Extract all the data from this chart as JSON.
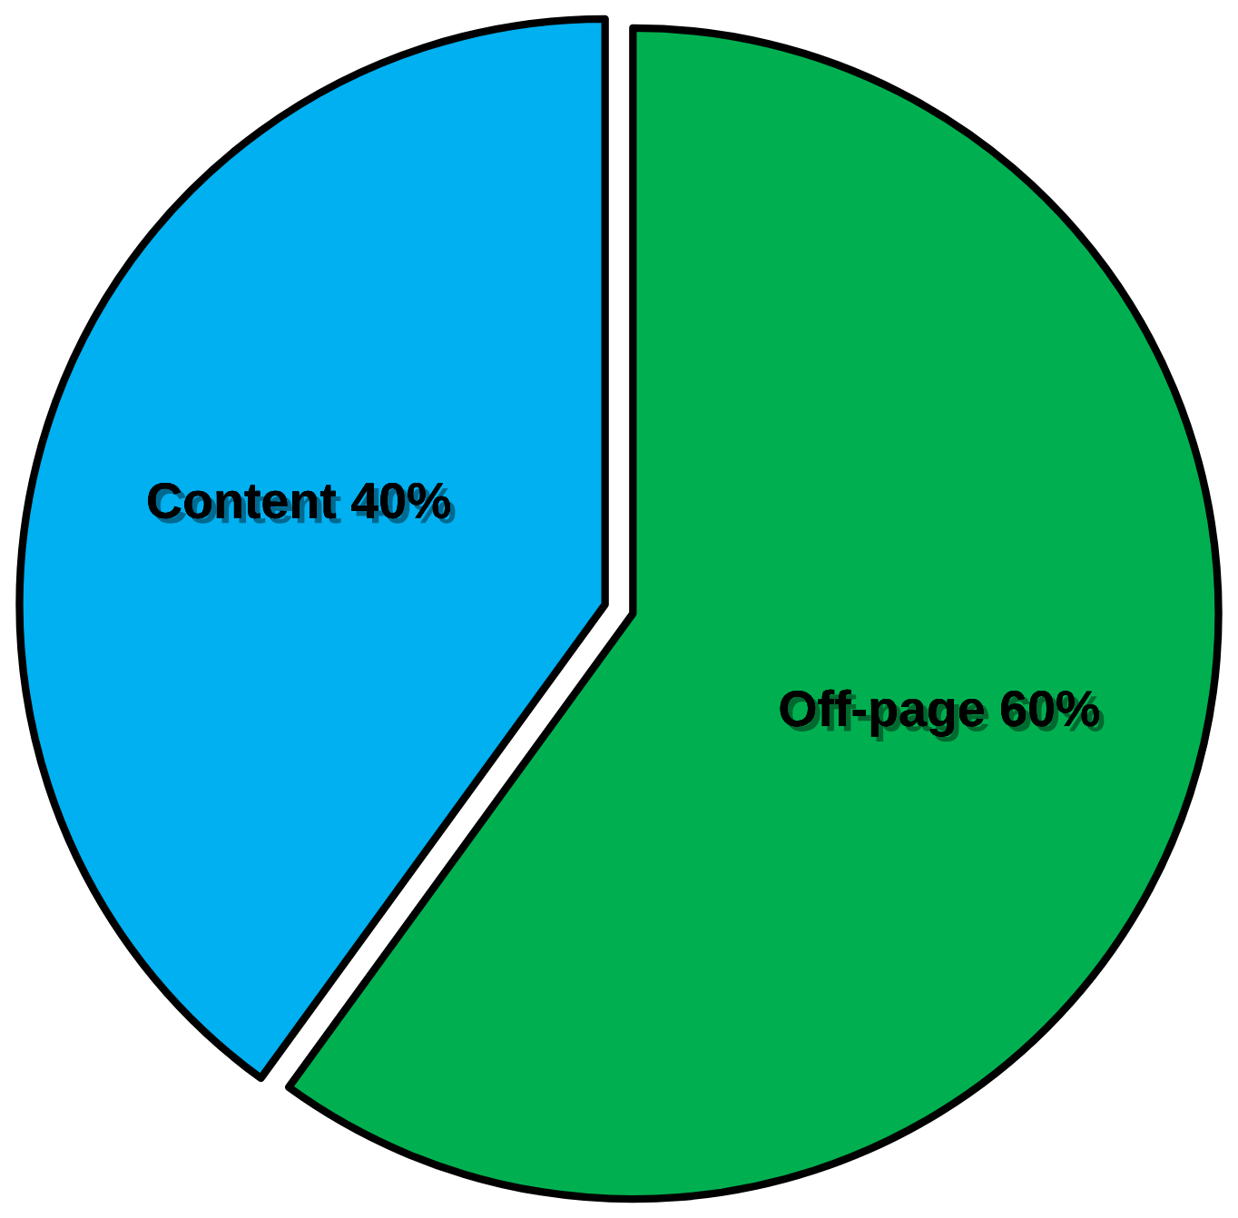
{
  "chart_data": {
    "type": "pie",
    "categories": [
      "Off-page",
      "Content"
    ],
    "values": [
      60,
      40
    ],
    "value_labels": [
      "60%",
      "40%"
    ],
    "colors": [
      "#00b050",
      "#00b0f0"
    ],
    "legend": false
  }
}
